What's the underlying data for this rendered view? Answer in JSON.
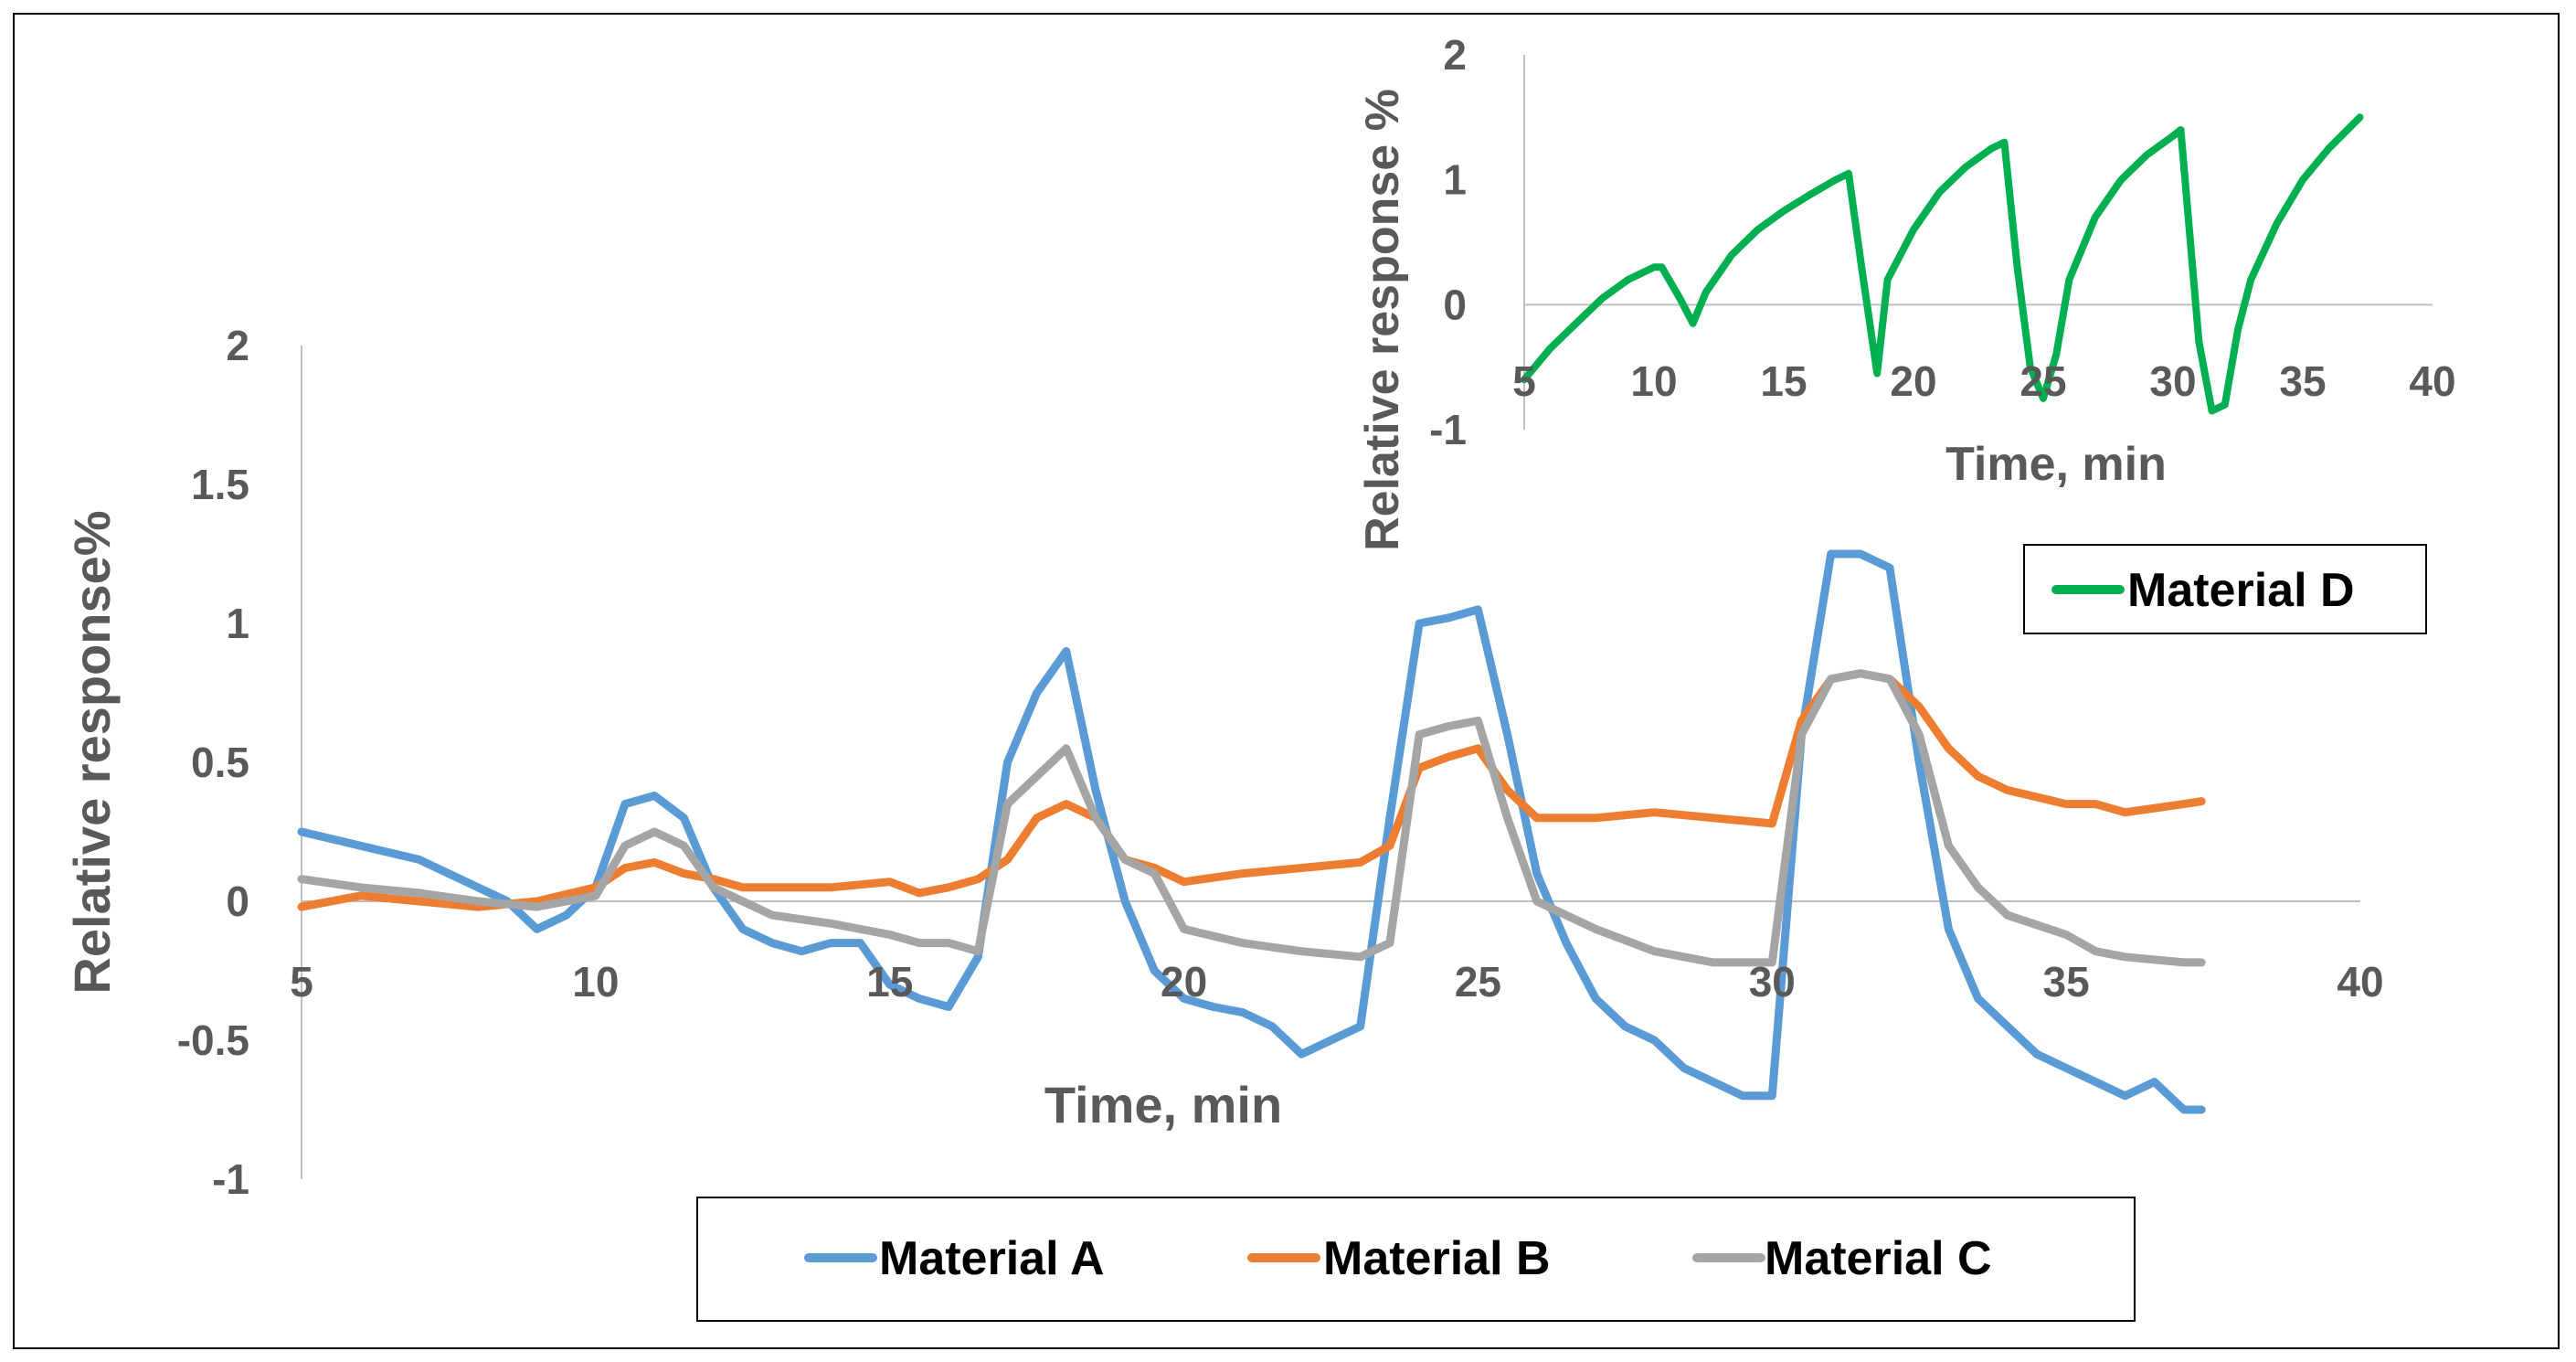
{
  "colors": {
    "Material A": "#5b9bd5",
    "Material B": "#ed7d31",
    "Material C": "#a5a5a5",
    "Material D": "#00b050",
    "text": "#595959",
    "axis": "#bfbfbf"
  },
  "chart_data": [
    {
      "type": "line",
      "title": "",
      "xlabel": "Time, min",
      "ylabel": "Relative response%",
      "xlim": [
        5,
        40
      ],
      "ylim": [
        -1,
        2
      ],
      "xticks": [
        "5",
        "10",
        "15",
        "20",
        "25",
        "30",
        "35",
        "40"
      ],
      "yticks": [
        "-1",
        "-0.5",
        "0",
        "0.5",
        "1",
        "1.5",
        "2"
      ],
      "grid": false,
      "legend": "bottom",
      "series": [
        {
          "name": "Material A",
          "x": [
            5,
            6,
            7,
            8,
            8.5,
            9,
            9.5,
            10,
            10.5,
            11,
            11.5,
            12,
            12.5,
            13,
            13.5,
            14,
            14.5,
            15,
            15.5,
            16,
            16.5,
            17,
            17.5,
            18,
            18.5,
            19,
            19.5,
            20,
            20.5,
            21,
            21.5,
            22,
            22.5,
            23,
            23.5,
            24,
            24.5,
            25,
            25.5,
            26,
            26.5,
            27,
            27.5,
            28,
            28.5,
            29,
            29.5,
            30,
            30.5,
            31,
            31.5,
            32,
            32.5,
            33,
            33.5,
            34,
            34.5,
            35,
            35.5,
            36,
            36.5,
            37,
            37.3
          ],
          "y": [
            0.25,
            0.2,
            0.15,
            0.05,
            0.0,
            -0.1,
            -0.05,
            0.05,
            0.35,
            0.38,
            0.3,
            0.05,
            -0.1,
            -0.15,
            -0.18,
            -0.15,
            -0.15,
            -0.3,
            -0.35,
            -0.38,
            -0.2,
            0.5,
            0.75,
            0.9,
            0.4,
            0.0,
            -0.25,
            -0.35,
            -0.38,
            -0.4,
            -0.45,
            -0.55,
            -0.5,
            -0.45,
            0.3,
            1.0,
            1.02,
            1.05,
            0.6,
            0.1,
            -0.15,
            -0.35,
            -0.45,
            -0.5,
            -0.6,
            -0.65,
            -0.7,
            -0.7,
            0.6,
            1.25,
            1.25,
            1.2,
            0.5,
            -0.1,
            -0.35,
            -0.45,
            -0.55,
            -0.6,
            -0.65,
            -0.7,
            -0.65,
            -0.75,
            -0.75
          ]
        },
        {
          "name": "Material B",
          "x": [
            5,
            6,
            7,
            8,
            9,
            10,
            10.5,
            11,
            11.5,
            12,
            12.5,
            13,
            14,
            15,
            15.5,
            16,
            16.5,
            17,
            17.5,
            18,
            18.5,
            19,
            19.5,
            20,
            21,
            22,
            23,
            23.5,
            24,
            24.5,
            25,
            25.5,
            26,
            27,
            28,
            29,
            30,
            30.5,
            31,
            31.5,
            32,
            32.5,
            33,
            33.5,
            34,
            35,
            35.5,
            36,
            37,
            37.3
          ],
          "y": [
            -0.02,
            0.02,
            0.0,
            -0.02,
            0.0,
            0.05,
            0.12,
            0.14,
            0.1,
            0.08,
            0.05,
            0.05,
            0.05,
            0.07,
            0.03,
            0.05,
            0.08,
            0.15,
            0.3,
            0.35,
            0.3,
            0.15,
            0.12,
            0.07,
            0.1,
            0.12,
            0.14,
            0.2,
            0.48,
            0.52,
            0.55,
            0.4,
            0.3,
            0.3,
            0.32,
            0.3,
            0.28,
            0.65,
            0.8,
            0.82,
            0.8,
            0.7,
            0.55,
            0.45,
            0.4,
            0.35,
            0.35,
            0.32,
            0.35,
            0.36
          ]
        },
        {
          "name": "Material C",
          "x": [
            5,
            6,
            7,
            8,
            9,
            10,
            10.5,
            11,
            11.5,
            12,
            12.5,
            13,
            14,
            15,
            15.5,
            16,
            16.5,
            17,
            17.5,
            18,
            18.5,
            19,
            19.5,
            20,
            21,
            22,
            23,
            23.5,
            24,
            24.5,
            25,
            25.5,
            26,
            27,
            28,
            29,
            30,
            30.5,
            31,
            31.5,
            32,
            32.5,
            33,
            33.5,
            34,
            35,
            35.5,
            36,
            37,
            37.3
          ],
          "y": [
            0.08,
            0.05,
            0.03,
            0.0,
            -0.02,
            0.02,
            0.2,
            0.25,
            0.2,
            0.05,
            0.0,
            -0.05,
            -0.08,
            -0.12,
            -0.15,
            -0.15,
            -0.18,
            0.35,
            0.45,
            0.55,
            0.3,
            0.15,
            0.1,
            -0.1,
            -0.15,
            -0.18,
            -0.2,
            -0.15,
            0.6,
            0.63,
            0.65,
            0.3,
            0.0,
            -0.1,
            -0.18,
            -0.22,
            -0.22,
            0.6,
            0.8,
            0.82,
            0.8,
            0.6,
            0.2,
            0.05,
            -0.05,
            -0.12,
            -0.18,
            -0.2,
            -0.22,
            -0.22
          ]
        }
      ]
    },
    {
      "type": "line",
      "title": "",
      "xlabel": "Time, min",
      "ylabel": "Relative response %",
      "xlim": [
        5,
        40
      ],
      "ylim": [
        -1,
        2
      ],
      "xticks": [
        "5",
        "10",
        "15",
        "20",
        "25",
        "30",
        "35",
        "40"
      ],
      "yticks": [
        "-1",
        "0",
        "1",
        "2"
      ],
      "grid": false,
      "legend": "bottom-right",
      "series": [
        {
          "name": "Material D",
          "x": [
            5,
            6,
            7,
            8,
            9,
            10,
            10.3,
            11,
            11.5,
            12,
            13,
            14,
            15,
            16,
            17,
            17.5,
            18,
            18.6,
            19,
            20,
            21,
            22,
            23,
            23.5,
            24,
            24.5,
            25,
            25.5,
            26,
            27,
            28,
            29,
            30,
            30.3,
            31,
            31.5,
            32,
            32.5,
            33,
            34,
            35,
            36,
            37.2
          ],
          "y": [
            -0.6,
            -0.35,
            -0.15,
            0.05,
            0.2,
            0.3,
            0.3,
            0.05,
            -0.15,
            0.1,
            0.4,
            0.6,
            0.75,
            0.88,
            1.0,
            1.05,
            0.3,
            -0.55,
            0.2,
            0.6,
            0.9,
            1.1,
            1.25,
            1.3,
            0.3,
            -0.5,
            -0.75,
            -0.4,
            0.2,
            0.7,
            1.0,
            1.2,
            1.35,
            1.4,
            -0.3,
            -0.85,
            -0.8,
            -0.2,
            0.2,
            0.65,
            1.0,
            1.25,
            1.5
          ]
        }
      ]
    }
  ]
}
